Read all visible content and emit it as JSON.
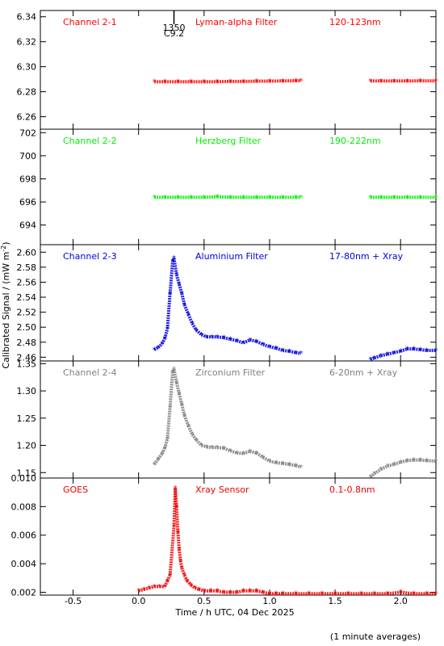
{
  "chart_data": {
    "type": "scatter",
    "xlabel": "Time / h UTC, 04 Dec 2025",
    "ylabel": "Calibrated Signal / (mW m",
    "ylabel_sup": "-2",
    "ylabel_tail": ")",
    "footnote": "(1 minute averages)",
    "xlim": [
      -0.75,
      2.27
    ],
    "xticks": [
      -0.5,
      0.0,
      0.5,
      1.0,
      1.5,
      2.0
    ],
    "xtick_labels": [
      "-0.5",
      "0.0",
      "0.5",
      "1.0",
      "1.5",
      "2.0"
    ],
    "flare_annotation": {
      "x": 0.27,
      "label_top": "1350",
      "label_bottom": "C9.2"
    },
    "panels": [
      {
        "label": "Channel 2-1",
        "filter": "Lyman-alpha Filter",
        "band": "120-123nm",
        "color": "#ff0000",
        "ylim": [
          6.25,
          6.345
        ],
        "yticks": [
          6.26,
          6.28,
          6.3,
          6.32,
          6.34
        ],
        "ytick_labels": [
          "6.26",
          "6.28",
          "6.30",
          "6.32",
          "6.34"
        ],
        "x": [
          0.12,
          0.2,
          0.3,
          0.4,
          0.5,
          0.6,
          0.7,
          0.8,
          0.9,
          1.0,
          1.1,
          1.2,
          1.24,
          1.77,
          1.85,
          1.95,
          2.05,
          2.15,
          2.27
        ],
        "y": [
          6.288,
          6.288,
          6.288,
          6.288,
          6.288,
          6.288,
          6.2882,
          6.2882,
          6.2884,
          6.2885,
          6.2886,
          6.2888,
          6.2888,
          6.2886,
          6.2886,
          6.2886,
          6.2886,
          6.2887,
          6.2887
        ]
      },
      {
        "label": "Channel 2-2",
        "filter": "Herzberg Filter",
        "band": "190-222nm",
        "color": "#00ee00",
        "ylim": [
          692.3,
          702.3
        ],
        "yticks": [
          694,
          696,
          698,
          700,
          702
        ],
        "ytick_labels": [
          "694",
          "696",
          "698",
          "700",
          "702"
        ],
        "x": [
          0.12,
          0.2,
          0.3,
          0.4,
          0.5,
          0.6,
          0.7,
          0.8,
          0.9,
          1.0,
          1.1,
          1.2,
          1.24,
          1.77,
          1.85,
          1.95,
          2.05,
          2.15,
          2.27
        ],
        "y": [
          696.4,
          696.4,
          696.4,
          696.4,
          696.4,
          696.45,
          696.4,
          696.4,
          696.4,
          696.4,
          696.4,
          696.4,
          696.4,
          696.4,
          696.4,
          696.4,
          696.4,
          696.4,
          696.4
        ]
      },
      {
        "label": "Channel 2-3",
        "filter": "Aluminium Filter",
        "band": "17-80nm + Xray",
        "color": "#0000dd",
        "ylim": [
          2.455,
          2.61
        ],
        "yticks": [
          2.46,
          2.48,
          2.5,
          2.52,
          2.54,
          2.56,
          2.58,
          2.6
        ],
        "ytick_labels": [
          "2.46",
          "2.48",
          "2.50",
          "2.52",
          "2.54",
          "2.56",
          "2.58",
          "2.60"
        ],
        "x": [
          0.12,
          0.15,
          0.18,
          0.2,
          0.22,
          0.24,
          0.26,
          0.27,
          0.29,
          0.31,
          0.33,
          0.35,
          0.38,
          0.41,
          0.44,
          0.48,
          0.52,
          0.56,
          0.6,
          0.65,
          0.7,
          0.75,
          0.8,
          0.85,
          0.9,
          0.95,
          1.0,
          1.05,
          1.1,
          1.15,
          1.2,
          1.24,
          1.77,
          1.8,
          1.85,
          1.9,
          1.95,
          2.0,
          2.05,
          2.1,
          2.15,
          2.2,
          2.27
        ],
        "y": [
          2.47,
          2.473,
          2.478,
          2.485,
          2.498,
          2.545,
          2.588,
          2.592,
          2.57,
          2.557,
          2.545,
          2.53,
          2.517,
          2.505,
          2.496,
          2.49,
          2.487,
          2.487,
          2.487,
          2.486,
          2.484,
          2.482,
          2.479,
          2.483,
          2.481,
          2.477,
          2.474,
          2.472,
          2.469,
          2.468,
          2.466,
          2.465,
          2.457,
          2.459,
          2.462,
          2.464,
          2.466,
          2.468,
          2.471,
          2.471,
          2.47,
          2.469,
          2.469
        ]
      },
      {
        "label": "Channel 2-4",
        "filter": "Zirconium Filter",
        "band": "6-20nm + Xray",
        "color": "#808080",
        "ylim": [
          1.14,
          1.355
        ],
        "yticks": [
          1.15,
          1.2,
          1.25,
          1.3,
          1.35
        ],
        "ytick_labels": [
          "1.15",
          "1.20",
          "1.25",
          "1.30",
          "1.35"
        ],
        "x": [
          0.12,
          0.15,
          0.18,
          0.2,
          0.22,
          0.24,
          0.26,
          0.27,
          0.29,
          0.31,
          0.33,
          0.35,
          0.38,
          0.41,
          0.44,
          0.48,
          0.52,
          0.56,
          0.6,
          0.65,
          0.7,
          0.75,
          0.8,
          0.85,
          0.9,
          0.95,
          1.0,
          1.05,
          1.1,
          1.15,
          1.2,
          1.24,
          1.77,
          1.8,
          1.85,
          1.9,
          1.95,
          2.0,
          2.05,
          2.1,
          2.15,
          2.2,
          2.27
        ],
        "y": [
          1.165,
          1.175,
          1.185,
          1.195,
          1.212,
          1.27,
          1.335,
          1.34,
          1.315,
          1.295,
          1.275,
          1.255,
          1.236,
          1.22,
          1.21,
          1.2,
          1.197,
          1.196,
          1.196,
          1.195,
          1.19,
          1.186,
          1.185,
          1.189,
          1.186,
          1.178,
          1.171,
          1.168,
          1.167,
          1.165,
          1.163,
          1.16,
          1.142,
          1.148,
          1.156,
          1.162,
          1.165,
          1.169,
          1.172,
          1.173,
          1.173,
          1.172,
          1.171
        ]
      },
      {
        "label": "GOES",
        "filter": "Xray Sensor",
        "band": "0.1-0.8nm",
        "color": "#ee0000",
        "ylim": [
          0.0018,
          0.01
        ],
        "yticks": [
          0.002,
          0.004,
          0.006,
          0.008,
          0.01
        ],
        "ytick_labels": [
          "0.002",
          "0.004",
          "0.006",
          "0.008",
          "0.010"
        ],
        "x": [
          0.0,
          0.04,
          0.08,
          0.12,
          0.16,
          0.2,
          0.22,
          0.24,
          0.27,
          0.28,
          0.29,
          0.3,
          0.31,
          0.32,
          0.33,
          0.35,
          0.37,
          0.4,
          0.43,
          0.46,
          0.5,
          0.55,
          0.6,
          0.65,
          0.7,
          0.75,
          0.8,
          0.85,
          0.9,
          0.95,
          1.0,
          1.05,
          1.1,
          1.2,
          1.3,
          1.4,
          1.5,
          1.6,
          1.7,
          1.8,
          1.9,
          2.0,
          2.1,
          2.2,
          2.27
        ],
        "y": [
          0.0021,
          0.0022,
          0.0023,
          0.0024,
          0.0024,
          0.0024,
          0.0028,
          0.0032,
          0.0066,
          0.0093,
          0.008,
          0.0062,
          0.005,
          0.0042,
          0.0037,
          0.0032,
          0.0028,
          0.0025,
          0.0023,
          0.0022,
          0.0021,
          0.0021,
          0.0021,
          0.002,
          0.002,
          0.002,
          0.0021,
          0.0021,
          0.0021,
          0.002,
          0.0019,
          0.0019,
          0.0019,
          0.0019,
          0.0019,
          0.0019,
          0.0019,
          0.0019,
          0.0019,
          0.0019,
          0.0019,
          0.002,
          0.0019,
          0.0019,
          0.0019
        ]
      }
    ]
  }
}
